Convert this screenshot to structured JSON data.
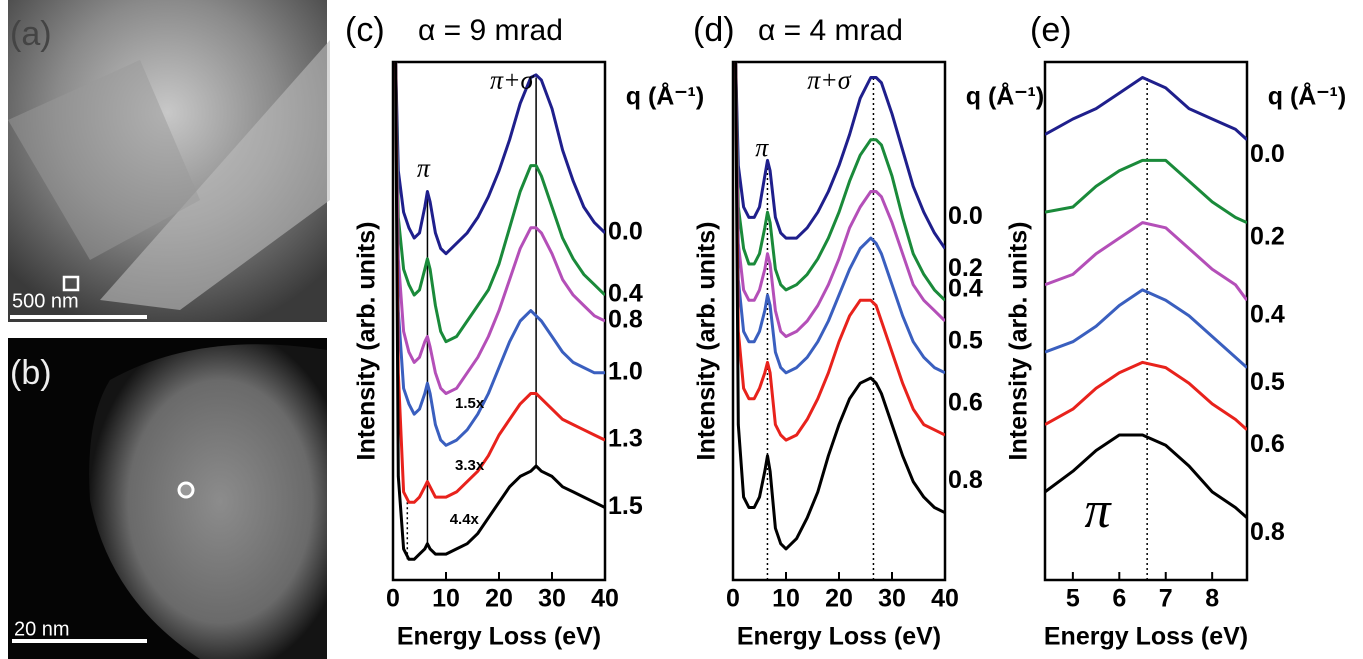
{
  "images": [
    {
      "label": "(a)",
      "scale_bar": "500 nm"
    },
    {
      "label": "(b)",
      "scale_bar": "20 nm"
    }
  ],
  "chart_data": [
    {
      "type": "line",
      "panel_label": "(c)",
      "title": "α = 9 mrad",
      "xlabel": "Energy Loss (eV)",
      "ylabel": "Intensity (arb. units)",
      "legend_title": "q (Å⁻¹)",
      "x": [
        0.5,
        1,
        2,
        3,
        4,
        5,
        6,
        6.5,
        7,
        8,
        9,
        10,
        12,
        14,
        16,
        18,
        20,
        22,
        24,
        26,
        27,
        28,
        30,
        32,
        34,
        36,
        38,
        40
      ],
      "series": [
        {
          "name": "0.0",
          "color": "#1f1f8c",
          "values": [
            100,
            79,
            71,
            68,
            66,
            67,
            72,
            75,
            73,
            67,
            64,
            63,
            65,
            67,
            70,
            74,
            79,
            85,
            92,
            97,
            97.5,
            96.5,
            91,
            83,
            77,
            72,
            69,
            67
          ]
        },
        {
          "name": "0.4",
          "color": "#1a8a3a",
          "values": [
            100,
            70,
            60,
            57,
            55,
            56,
            60,
            62,
            60,
            53,
            48,
            46,
            47,
            50,
            53,
            56,
            61,
            68,
            75,
            80,
            80,
            78,
            72,
            66,
            62,
            59,
            57,
            55
          ]
        },
        {
          "name": "0.8",
          "color": "#b44fb8",
          "values": [
            100,
            62,
            48,
            44,
            42,
            43,
            46,
            47,
            45,
            40,
            37,
            36,
            37,
            40,
            43,
            47,
            52,
            58,
            64,
            68,
            68,
            67,
            63,
            58,
            55,
            53,
            51,
            50
          ]
        },
        {
          "name": "1.0",
          "color": "#3a5fbf",
          "values": [
            100,
            52,
            37,
            34,
            32,
            33,
            36,
            38,
            36,
            30,
            27,
            26,
            27,
            29,
            32,
            36,
            41,
            46,
            50,
            52,
            51,
            50,
            47,
            44,
            42,
            41,
            40,
            40
          ]
        },
        {
          "name": "1.3",
          "color": "#e8221c",
          "values": [
            100,
            40,
            17,
            15,
            15,
            16,
            18,
            19,
            18,
            16,
            16,
            16,
            17,
            19,
            21,
            24,
            28,
            31,
            34,
            36,
            36,
            35,
            33,
            31,
            30,
            29,
            28,
            27
          ]
        },
        {
          "name": "1.5",
          "color": "#000000",
          "values": [
            100,
            20,
            6,
            4,
            4,
            5,
            6,
            7,
            6,
            5,
            5,
            5,
            6,
            7,
            9,
            12,
            15,
            18,
            20,
            21,
            22,
            21,
            20,
            18,
            17,
            16,
            15,
            14
          ]
        }
      ],
      "annotations": [
        "π",
        "π+σ",
        "1.5x",
        "3.3x",
        "4.4x"
      ],
      "vlines": [
        {
          "x": 6.5,
          "from": 7,
          "to": 75,
          "style": "solid"
        },
        {
          "x": 27,
          "from": 22,
          "to": 97,
          "style": "solid"
        },
        {
          "x": 2.7,
          "from": 4,
          "to": 15,
          "style": "dotted"
        }
      ],
      "xlim": [
        0,
        40
      ],
      "xticks": [
        0,
        10,
        20,
        30,
        40
      ],
      "ylim": [
        0,
        100
      ]
    },
    {
      "type": "line",
      "panel_label": "(d)",
      "title": "α = 4 mrad",
      "xlabel": "Energy Loss (eV)",
      "ylabel": "Intensity (arb. units)",
      "legend_title": "q (Å⁻¹)",
      "x": [
        0.5,
        1,
        2,
        3,
        4,
        5,
        6,
        6.5,
        7,
        8,
        9,
        10,
        12,
        14,
        16,
        18,
        20,
        22,
        24,
        26,
        27,
        28,
        30,
        32,
        34,
        36,
        38,
        40
      ],
      "series": [
        {
          "name": "0.0",
          "color": "#1f1f8c",
          "values": [
            100,
            80,
            72,
            70,
            70,
            72,
            78,
            81,
            79,
            70,
            67,
            66,
            66,
            68,
            71,
            75,
            80,
            86,
            93,
            97,
            97,
            96,
            90,
            83,
            76,
            71,
            67,
            64
          ]
        },
        {
          "name": "0.2",
          "color": "#1a8a3a",
          "values": [
            100,
            72,
            64,
            61,
            61,
            63,
            68,
            71,
            69,
            60,
            57,
            56,
            57,
            59,
            62,
            66,
            71,
            77,
            82,
            85,
            85,
            84,
            78,
            70,
            63,
            59,
            56,
            54
          ]
        },
        {
          "name": "0.4",
          "color": "#b44fb8",
          "values": [
            100,
            65,
            56,
            54,
            54,
            56,
            60,
            63,
            61,
            52,
            48,
            47,
            48,
            50,
            53,
            57,
            62,
            68,
            72,
            75,
            75,
            74,
            69,
            63,
            57,
            54,
            52,
            50
          ]
        },
        {
          "name": "0.5",
          "color": "#3a5fbf",
          "values": [
            100,
            58,
            48,
            46,
            46,
            48,
            52,
            55,
            53,
            44,
            41,
            40,
            41,
            43,
            46,
            50,
            55,
            60,
            64,
            66,
            65,
            63,
            57,
            51,
            46,
            43,
            41,
            40
          ]
        },
        {
          "name": "0.6",
          "color": "#e8221c",
          "values": [
            100,
            48,
            37,
            35,
            35,
            37,
            40,
            42,
            40,
            30,
            28,
            27,
            28,
            31,
            35,
            40,
            46,
            51,
            54,
            54,
            53,
            50,
            44,
            38,
            33,
            30,
            29,
            28
          ]
        },
        {
          "name": "0.8",
          "color": "#000000",
          "values": [
            100,
            30,
            16,
            14,
            14,
            16,
            21,
            24,
            21,
            10,
            7,
            6,
            8,
            12,
            17,
            24,
            30,
            35,
            38,
            39,
            38,
            36,
            30,
            24,
            19,
            16,
            14,
            13
          ]
        }
      ],
      "annotations": [
        "π",
        "π+σ"
      ],
      "vlines": [
        {
          "x": 6.5,
          "from": 0,
          "to": 81,
          "style": "dotted"
        },
        {
          "x": 26.5,
          "from": 0,
          "to": 97,
          "style": "dotted"
        }
      ],
      "xlim": [
        0,
        40
      ],
      "xticks": [
        0,
        10,
        20,
        30,
        40
      ],
      "ylim": [
        0,
        100
      ]
    },
    {
      "type": "line",
      "panel_label": "(e)",
      "xlabel": "Energy Loss (eV)",
      "ylabel": "Intensity (arb. units)",
      "legend_title": "q (Å⁻¹)",
      "x": [
        4.4,
        5,
        5.5,
        6,
        6.5,
        7,
        7.5,
        8,
        8.5,
        8.75
      ],
      "series": [
        {
          "name": "0.0",
          "color": "#1f1f8c",
          "values": [
            86,
            89,
            91,
            94,
            97,
            95,
            91,
            89,
            87,
            85
          ]
        },
        {
          "name": "0.2",
          "color": "#1a8a3a",
          "values": [
            71,
            72,
            76,
            79,
            81,
            81,
            77,
            73,
            70,
            69
          ]
        },
        {
          "name": "0.4",
          "color": "#b44fb8",
          "values": [
            57,
            59,
            63,
            66,
            69,
            68,
            64,
            60,
            57,
            54
          ]
        },
        {
          "name": "0.5",
          "color": "#3a5fbf",
          "values": [
            44,
            46,
            49,
            53,
            56,
            54,
            51,
            47,
            43,
            41
          ]
        },
        {
          "name": "0.6",
          "color": "#e8221c",
          "values": [
            30,
            33,
            37,
            40,
            42,
            41,
            38,
            34,
            31,
            29
          ]
        },
        {
          "name": "0.8",
          "color": "#000000",
          "values": [
            17,
            21,
            25,
            28,
            28,
            26,
            22,
            17,
            14,
            12
          ]
        }
      ],
      "annotations": [
        "π"
      ],
      "vlines": [
        {
          "x": 6.6,
          "from": 0,
          "to": 97,
          "style": "dotted"
        }
      ],
      "xlim": [
        4.4,
        8.75
      ],
      "xticks": [
        5,
        6,
        7,
        8
      ],
      "ylim": [
        0,
        100
      ]
    }
  ]
}
